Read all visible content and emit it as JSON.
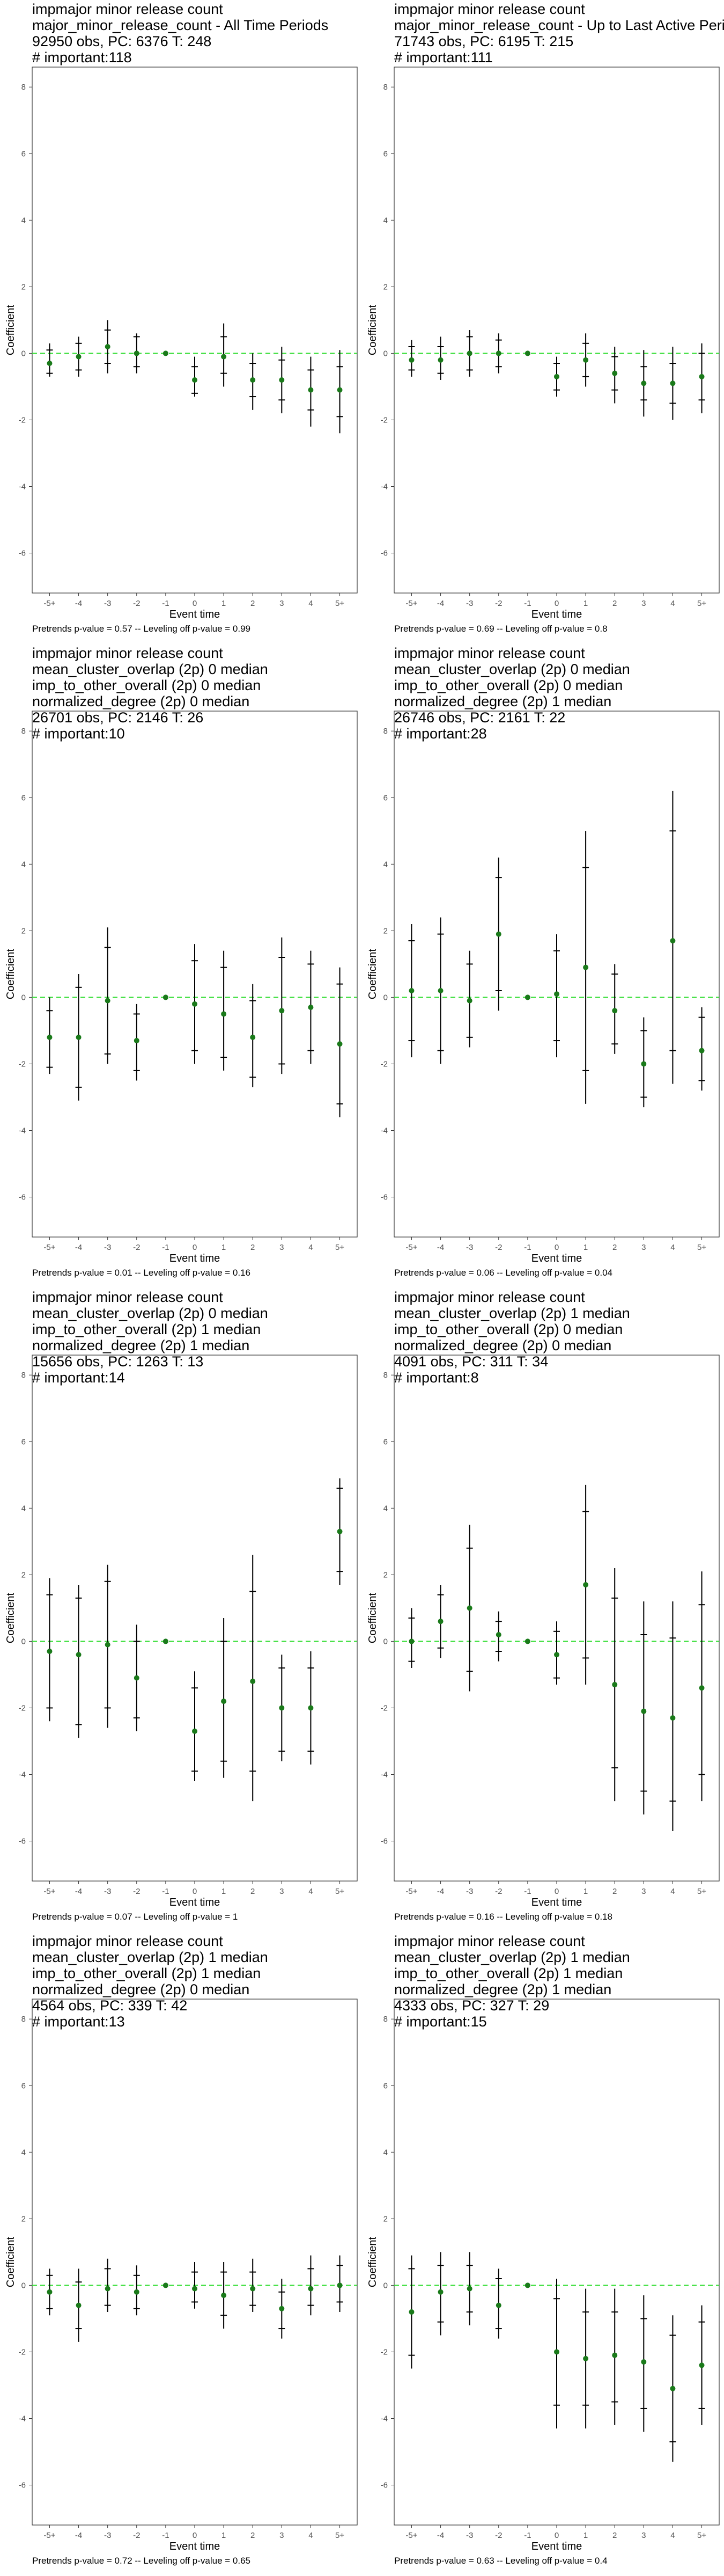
{
  "common": {
    "xlabel": "Event time",
    "ylabel": "Coefficient",
    "x_ticks": [
      "-5+",
      "-4",
      "-3",
      "-2",
      "-1",
      "0",
      "1",
      "2",
      "3",
      "4",
      "5+"
    ],
    "y_ticks": [
      -6,
      -4,
      -2,
      0,
      2,
      4,
      6,
      8
    ],
    "ylim": [
      -7.2,
      8.6
    ],
    "zero_line_color": "#33dd33",
    "point_color": "#1a7a1a"
  },
  "chart_data": [
    {
      "type": "scatter",
      "title_lines": [
        " impmajor minor release count",
        "major_minor_release_count - All Time Periods",
        "92950 obs, PC: 6376 T: 248",
        "# important:118"
      ],
      "caption": "Pretrends p-value = 0.57 -- Leveling off p-value = 0.99",
      "x": [
        "-5+",
        "-4",
        "-3",
        "-2",
        "-1",
        "0",
        "1",
        "2",
        "3",
        "4",
        "5+"
      ],
      "estimates": [
        -0.3,
        -0.1,
        0.2,
        0.0,
        0.0,
        -0.8,
        -0.1,
        -0.8,
        -0.8,
        -1.1,
        -1.1
      ],
      "ci_inner": [
        [
          -0.6,
          0.1
        ],
        [
          -0.5,
          0.3
        ],
        [
          -0.3,
          0.7
        ],
        [
          -0.4,
          0.5
        ],
        [
          0,
          0
        ],
        [
          -1.2,
          -0.4
        ],
        [
          -0.6,
          0.5
        ],
        [
          -1.3,
          -0.3
        ],
        [
          -1.4,
          -0.2
        ],
        [
          -1.7,
          -0.5
        ],
        [
          -1.9,
          -0.4
        ]
      ],
      "ci_outer": [
        [
          -0.7,
          0.3
        ],
        [
          -0.7,
          0.5
        ],
        [
          -0.6,
          1.0
        ],
        [
          -0.6,
          0.6
        ],
        [
          0,
          0
        ],
        [
          -1.3,
          -0.1
        ],
        [
          -1.0,
          0.9
        ],
        [
          -1.7,
          0.0
        ],
        [
          -1.8,
          0.2
        ],
        [
          -2.2,
          -0.1
        ],
        [
          -2.4,
          0.1
        ]
      ]
    },
    {
      "type": "scatter",
      "title_lines": [
        " impmajor minor release count",
        "major_minor_release_count - Up to Last Active Period",
        "71743 obs, PC: 6195 T: 215",
        "# important:111"
      ],
      "caption": "Pretrends p-value = 0.69 -- Leveling off p-value = 0.8",
      "x": [
        "-5+",
        "-4",
        "-3",
        "-2",
        "-1",
        "0",
        "1",
        "2",
        "3",
        "4",
        "5+"
      ],
      "estimates": [
        -0.2,
        -0.2,
        0.0,
        0.0,
        0.0,
        -0.7,
        -0.2,
        -0.6,
        -0.9,
        -0.9,
        -0.7
      ],
      "ci_inner": [
        [
          -0.5,
          0.2
        ],
        [
          -0.6,
          0.2
        ],
        [
          -0.5,
          0.5
        ],
        [
          -0.4,
          0.4
        ],
        [
          0,
          0
        ],
        [
          -1.1,
          -0.3
        ],
        [
          -0.7,
          0.3
        ],
        [
          -1.1,
          -0.1
        ],
        [
          -1.4,
          -0.4
        ],
        [
          -1.5,
          -0.3
        ],
        [
          -1.4,
          0.0
        ]
      ],
      "ci_outer": [
        [
          -0.7,
          0.4
        ],
        [
          -0.8,
          0.5
        ],
        [
          -0.7,
          0.7
        ],
        [
          -0.6,
          0.6
        ],
        [
          0,
          0
        ],
        [
          -1.3,
          -0.1
        ],
        [
          -1.0,
          0.6
        ],
        [
          -1.5,
          0.2
        ],
        [
          -1.9,
          0.1
        ],
        [
          -2.0,
          0.2
        ],
        [
          -1.8,
          0.3
        ]
      ]
    },
    {
      "type": "scatter",
      "title_lines": [
        " impmajor minor release count",
        "mean_cluster_overlap (2p) 0 median",
        "imp_to_other_overall (2p) 0 median",
        "normalized_degree (2p) 0 median",
        "26701 obs, PC: 2146 T: 26",
        "# important:10"
      ],
      "caption": "Pretrends p-value = 0.01 -- Leveling off p-value = 0.16",
      "x": [
        "-5+",
        "-4",
        "-3",
        "-2",
        "-1",
        "0",
        "1",
        "2",
        "3",
        "4",
        "5+"
      ],
      "estimates": [
        -1.2,
        -1.2,
        -0.1,
        -1.3,
        0.0,
        -0.2,
        -0.5,
        -1.2,
        -0.4,
        -0.3,
        -1.4
      ],
      "ci_inner": [
        [
          -2.1,
          -0.4
        ],
        [
          -2.7,
          0.3
        ],
        [
          -1.7,
          1.5
        ],
        [
          -2.2,
          -0.5
        ],
        [
          0,
          0
        ],
        [
          -1.6,
          1.1
        ],
        [
          -1.8,
          0.9
        ],
        [
          -2.4,
          -0.1
        ],
        [
          -2.0,
          1.2
        ],
        [
          -1.6,
          1.0
        ],
        [
          -3.2,
          0.4
        ]
      ],
      "ci_outer": [
        [
          -2.3,
          0.0
        ],
        [
          -3.1,
          0.7
        ],
        [
          -2.0,
          2.1
        ],
        [
          -2.5,
          -0.2
        ],
        [
          0,
          0
        ],
        [
          -2.0,
          1.6
        ],
        [
          -2.2,
          1.4
        ],
        [
          -2.7,
          0.4
        ],
        [
          -2.3,
          1.8
        ],
        [
          -2.0,
          1.4
        ],
        [
          -3.6,
          0.9
        ]
      ]
    },
    {
      "type": "scatter",
      "title_lines": [
        " impmajor minor release count",
        "mean_cluster_overlap (2p) 0 median",
        "imp_to_other_overall (2p) 0 median",
        "normalized_degree (2p) 1 median",
        "26746 obs, PC: 2161 T: 22",
        "# important:28"
      ],
      "caption": "Pretrends p-value = 0.06 -- Leveling off p-value = 0.04",
      "x": [
        "-5+",
        "-4",
        "-3",
        "-2",
        "-1",
        "0",
        "1",
        "2",
        "3",
        "4",
        "5+"
      ],
      "estimates": [
        0.2,
        0.2,
        -0.1,
        1.9,
        0.0,
        0.1,
        0.9,
        -0.4,
        -2.0,
        1.7,
        -1.6
      ],
      "ci_inner": [
        [
          -1.3,
          1.7
        ],
        [
          -1.6,
          1.9
        ],
        [
          -1.2,
          1.0
        ],
        [
          0.2,
          3.6
        ],
        [
          0,
          0
        ],
        [
          -1.3,
          1.4
        ],
        [
          -2.2,
          3.9
        ],
        [
          -1.4,
          0.7
        ],
        [
          -3.0,
          -1.0
        ],
        [
          -1.6,
          5.0
        ],
        [
          -2.5,
          -0.6
        ]
      ],
      "ci_outer": [
        [
          -1.8,
          2.2
        ],
        [
          -2.0,
          2.4
        ],
        [
          -1.5,
          1.4
        ],
        [
          -0.4,
          4.2
        ],
        [
          0,
          0
        ],
        [
          -1.8,
          1.9
        ],
        [
          -3.2,
          5.0
        ],
        [
          -1.7,
          1.0
        ],
        [
          -3.3,
          -0.6
        ],
        [
          -2.6,
          6.2
        ],
        [
          -2.8,
          -0.3
        ]
      ]
    },
    {
      "type": "scatter",
      "title_lines": [
        " impmajor minor release count",
        "mean_cluster_overlap (2p) 0 median",
        "imp_to_other_overall (2p) 1 median",
        "normalized_degree (2p) 1 median",
        "15656 obs, PC: 1263 T: 13",
        "# important:14"
      ],
      "caption": "Pretrends p-value = 0.07 -- Leveling off p-value = 1",
      "x": [
        "-5+",
        "-4",
        "-3",
        "-2",
        "-1",
        "0",
        "1",
        "2",
        "3",
        "4",
        "5+"
      ],
      "estimates": [
        -0.3,
        -0.4,
        -0.1,
        -1.1,
        0.0,
        -2.7,
        -1.8,
        -1.2,
        -2.0,
        -2.0,
        3.3
      ],
      "ci_inner": [
        [
          -2.0,
          1.4
        ],
        [
          -2.5,
          1.3
        ],
        [
          -2.0,
          1.8
        ],
        [
          -2.3,
          0.0
        ],
        [
          0,
          0
        ],
        [
          -3.9,
          -1.4
        ],
        [
          -3.6,
          0.0
        ],
        [
          -3.9,
          1.5
        ],
        [
          -3.3,
          -0.8
        ],
        [
          -3.3,
          -0.8
        ],
        [
          2.1,
          4.6
        ]
      ],
      "ci_outer": [
        [
          -2.4,
          1.9
        ],
        [
          -2.9,
          1.7
        ],
        [
          -2.6,
          2.3
        ],
        [
          -2.7,
          0.5
        ],
        [
          0,
          0
        ],
        [
          -4.2,
          -0.9
        ],
        [
          -4.1,
          0.7
        ],
        [
          -4.8,
          2.6
        ],
        [
          -3.6,
          -0.4
        ],
        [
          -3.7,
          -0.3
        ],
        [
          1.7,
          4.9
        ]
      ]
    },
    {
      "type": "scatter",
      "title_lines": [
        " impmajor minor release count",
        "mean_cluster_overlap (2p) 1 median",
        "imp_to_other_overall (2p) 0 median",
        "normalized_degree (2p) 0 median",
        "4091 obs, PC: 311 T: 34",
        "# important:8"
      ],
      "caption": "Pretrends p-value = 0.16 -- Leveling off p-value = 0.18",
      "x": [
        "-5+",
        "-4",
        "-3",
        "-2",
        "-1",
        "0",
        "1",
        "2",
        "3",
        "4",
        "5+"
      ],
      "estimates": [
        0.0,
        0.6,
        1.0,
        0.2,
        0.0,
        -0.4,
        1.7,
        -1.3,
        -2.1,
        -2.3,
        -1.4
      ],
      "ci_inner": [
        [
          -0.6,
          0.7
        ],
        [
          -0.2,
          1.4
        ],
        [
          -0.9,
          2.8
        ],
        [
          -0.3,
          0.6
        ],
        [
          0,
          0
        ],
        [
          -1.1,
          0.3
        ],
        [
          -0.5,
          3.9
        ],
        [
          -3.8,
          1.3
        ],
        [
          -4.5,
          0.2
        ],
        [
          -4.8,
          0.1
        ],
        [
          -4.0,
          1.1
        ]
      ],
      "ci_outer": [
        [
          -0.8,
          1.0
        ],
        [
          -0.5,
          1.7
        ],
        [
          -1.5,
          3.5
        ],
        [
          -0.6,
          0.9
        ],
        [
          0,
          0
        ],
        [
          -1.3,
          0.6
        ],
        [
          -1.3,
          4.7
        ],
        [
          -4.8,
          2.2
        ],
        [
          -5.2,
          1.2
        ],
        [
          -5.7,
          1.2
        ],
        [
          -4.8,
          2.1
        ]
      ]
    },
    {
      "type": "scatter",
      "title_lines": [
        " impmajor minor release count",
        "mean_cluster_overlap (2p) 1 median",
        "imp_to_other_overall (2p) 1 median",
        "normalized_degree (2p) 0 median",
        "4564 obs, PC: 339 T: 42",
        "# important:13"
      ],
      "caption": "Pretrends p-value = 0.72 -- Leveling off p-value = 0.65",
      "x": [
        "-5+",
        "-4",
        "-3",
        "-2",
        "-1",
        "0",
        "1",
        "2",
        "3",
        "4",
        "5+"
      ],
      "estimates": [
        -0.2,
        -0.6,
        -0.1,
        -0.2,
        0.0,
        -0.1,
        -0.3,
        -0.1,
        -0.7,
        -0.1,
        0.0
      ],
      "ci_inner": [
        [
          -0.7,
          0.3
        ],
        [
          -1.3,
          0.1
        ],
        [
          -0.6,
          0.5
        ],
        [
          -0.7,
          0.3
        ],
        [
          0,
          0
        ],
        [
          -0.5,
          0.4
        ],
        [
          -0.9,
          0.4
        ],
        [
          -0.6,
          0.4
        ],
        [
          -1.3,
          -0.2
        ],
        [
          -0.6,
          0.5
        ],
        [
          -0.5,
          0.6
        ]
      ],
      "ci_outer": [
        [
          -0.9,
          0.5
        ],
        [
          -1.7,
          0.5
        ],
        [
          -0.8,
          0.8
        ],
        [
          -0.9,
          0.6
        ],
        [
          0,
          0
        ],
        [
          -0.7,
          0.7
        ],
        [
          -1.3,
          0.7
        ],
        [
          -0.8,
          0.8
        ],
        [
          -1.6,
          0.2
        ],
        [
          -0.9,
          0.9
        ],
        [
          -0.8,
          0.9
        ]
      ]
    },
    {
      "type": "scatter",
      "title_lines": [
        " impmajor minor release count",
        "mean_cluster_overlap (2p) 1 median",
        "imp_to_other_overall (2p) 1 median",
        "normalized_degree (2p) 1 median",
        "4333 obs, PC: 327 T: 29",
        "# important:15"
      ],
      "caption": "Pretrends p-value = 0.63 -- Leveling off p-value = 0.4",
      "x": [
        "-5+",
        "-4",
        "-3",
        "-2",
        "-1",
        "0",
        "1",
        "2",
        "3",
        "4",
        "5+"
      ],
      "estimates": [
        -0.8,
        -0.2,
        -0.1,
        -0.6,
        0.0,
        -2.0,
        -2.2,
        -2.1,
        -2.3,
        -3.1,
        -2.4
      ],
      "ci_inner": [
        [
          -2.1,
          0.5
        ],
        [
          -1.1,
          0.6
        ],
        [
          -0.8,
          0.6
        ],
        [
          -1.3,
          0.2
        ],
        [
          0,
          0
        ],
        [
          -3.6,
          -0.4
        ],
        [
          -3.6,
          -0.8
        ],
        [
          -3.5,
          -0.8
        ],
        [
          -3.7,
          -1.0
        ],
        [
          -4.7,
          -1.5
        ],
        [
          -3.7,
          -1.1
        ]
      ],
      "ci_outer": [
        [
          -2.5,
          0.9
        ],
        [
          -1.5,
          1.0
        ],
        [
          -1.2,
          1.0
        ],
        [
          -1.6,
          0.5
        ],
        [
          0,
          0
        ],
        [
          -4.3,
          0.2
        ],
        [
          -4.3,
          -0.1
        ],
        [
          -4.2,
          -0.1
        ],
        [
          -4.4,
          -0.3
        ],
        [
          -5.3,
          -0.9
        ],
        [
          -4.2,
          -0.6
        ]
      ]
    }
  ]
}
